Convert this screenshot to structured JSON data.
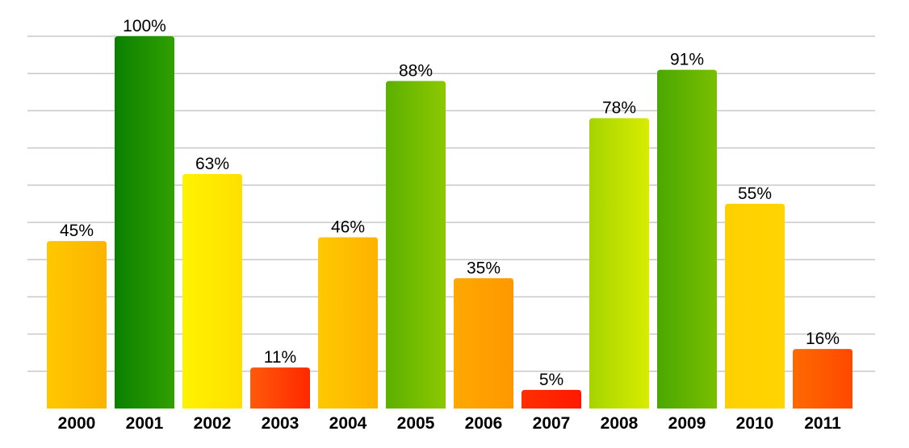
{
  "chart_data": {
    "type": "bar",
    "title": "",
    "xlabel": "",
    "ylabel": "",
    "categories": [
      "2000",
      "2001",
      "2002",
      "2003",
      "2004",
      "2005",
      "2006",
      "2007",
      "2008",
      "2009",
      "2010",
      "2011"
    ],
    "values": [
      45,
      100,
      63,
      11,
      46,
      88,
      35,
      5,
      78,
      91,
      55,
      16
    ],
    "value_labels": [
      "45%",
      "100%",
      "63%",
      "11%",
      "46%",
      "88%",
      "35%",
      "5%",
      "78%",
      "91%",
      "55%",
      "16%"
    ],
    "ylim": [
      0,
      100
    ],
    "grid": true,
    "legend": "none",
    "bar_colors": [
      [
        "#ffc800",
        "#fdb300"
      ],
      [
        "#0a8000",
        "#32a000"
      ],
      [
        "#fff200",
        "#ffe000"
      ],
      [
        "#ff5a0a",
        "#ff2800"
      ],
      [
        "#ffc800",
        "#fdb300"
      ],
      [
        "#5cb000",
        "#8cc800"
      ],
      [
        "#ffa800",
        "#ff9800"
      ],
      [
        "#ff3000",
        "#ff1800"
      ],
      [
        "#a6d400",
        "#d8ec00"
      ],
      [
        "#4aa800",
        "#7abe00"
      ],
      [
        "#ffd000",
        "#ffd400"
      ],
      [
        "#ff6a00",
        "#ff4800"
      ]
    ],
    "grid_color": "#c8c8c8"
  }
}
